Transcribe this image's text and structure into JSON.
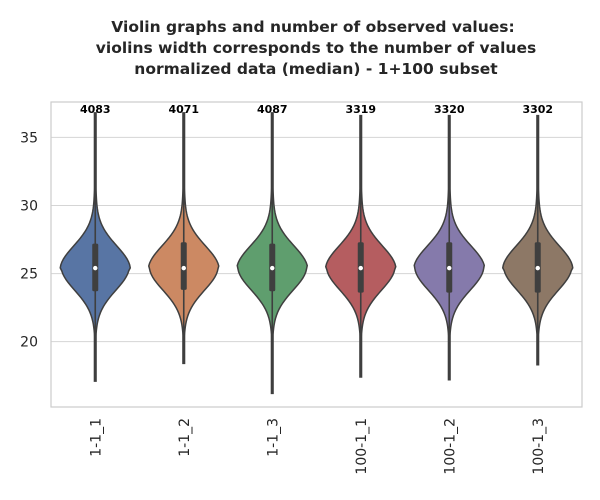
{
  "chart_data": {
    "type": "violin",
    "title_lines": [
      "Violin graphs and number of observed values:",
      "violins width corresponds to the number of values",
      "normalized data (median) - 1+100 subset"
    ],
    "xlabel": "",
    "ylabel": "",
    "ylim": [
      15.2,
      37.6
    ],
    "yticks": [
      20,
      25,
      30,
      35
    ],
    "grid": true,
    "categories": [
      "1-1_1",
      "1-1_2",
      "1-1_3",
      "100-1_1",
      "100-1_2",
      "100-1_3"
    ],
    "counts": [
      "4083",
      "4071",
      "4087",
      "3319",
      "3320",
      "3302"
    ],
    "colors": [
      "#5875a4",
      "#cc8963",
      "#5f9e6e",
      "#b55d60",
      "#857aab",
      "#8d7866"
    ],
    "violins": [
      {
        "min": 17.1,
        "max": 36.8,
        "q1": 23.7,
        "median": 25.4,
        "q3": 27.2
      },
      {
        "min": 18.4,
        "max": 36.8,
        "q1": 23.8,
        "median": 25.4,
        "q3": 27.3
      },
      {
        "min": 16.2,
        "max": 36.8,
        "q1": 23.7,
        "median": 25.4,
        "q3": 27.2
      },
      {
        "min": 17.4,
        "max": 36.6,
        "q1": 23.6,
        "median": 25.4,
        "q3": 27.3
      },
      {
        "min": 17.2,
        "max": 36.6,
        "q1": 23.6,
        "median": 25.4,
        "q3": 27.3
      },
      {
        "min": 18.3,
        "max": 36.6,
        "q1": 23.6,
        "median": 25.4,
        "q3": 27.3
      }
    ]
  }
}
